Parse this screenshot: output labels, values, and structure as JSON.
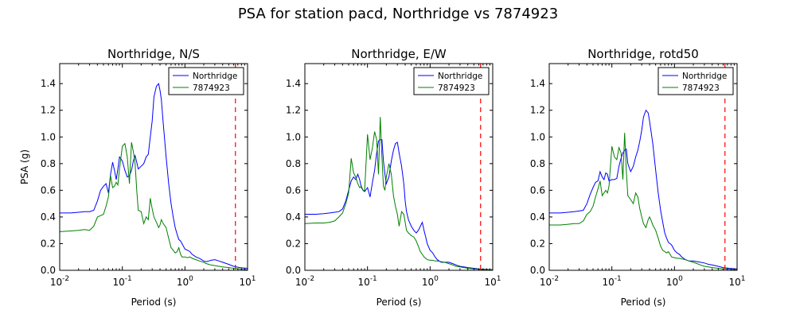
{
  "figure": {
    "title": "PSA for station pacd, Northridge vs 7874923"
  },
  "colors": {
    "northridge": "#0000ff",
    "event": "#008000",
    "cutoff": "#ff0000"
  },
  "chart_data": [
    {
      "type": "line",
      "title": "Northridge, N/S",
      "xlabel": "Period (s)",
      "ylabel": "PSA (g)",
      "xscale": "log",
      "xlim": [
        0.01,
        10
      ],
      "ylim": [
        0,
        1.55
      ],
      "xticks": [
        "10^-2",
        "10^-1",
        "10^0",
        "10^1"
      ],
      "yticks": [
        "0.0",
        "0.2",
        "0.4",
        "0.6",
        "0.8",
        "1.0",
        "1.2",
        "1.4"
      ],
      "legend": "top-right",
      "cutoff_period": 6.4,
      "series": [
        {
          "name": "Northridge",
          "color": "#0000ff",
          "x": [
            0.01,
            0.015,
            0.02,
            0.025,
            0.03,
            0.035,
            0.04,
            0.045,
            0.05,
            0.055,
            0.06,
            0.065,
            0.07,
            0.075,
            0.08,
            0.085,
            0.09,
            0.1,
            0.11,
            0.12,
            0.13,
            0.14,
            0.15,
            0.16,
            0.17,
            0.18,
            0.2,
            0.22,
            0.24,
            0.26,
            0.28,
            0.3,
            0.32,
            0.35,
            0.38,
            0.4,
            0.42,
            0.45,
            0.5,
            0.55,
            0.6,
            0.65,
            0.7,
            0.75,
            0.8,
            0.85,
            0.9,
            1.0,
            1.1,
            1.2,
            1.3,
            1.5,
            1.7,
            2.0,
            2.2,
            2.4,
            2.6,
            3.0,
            3.5,
            4.0,
            5.0,
            6.0,
            7.5,
            10
          ],
          "y": [
            0.43,
            0.43,
            0.435,
            0.44,
            0.44,
            0.45,
            0.52,
            0.6,
            0.63,
            0.65,
            0.58,
            0.72,
            0.81,
            0.75,
            0.68,
            0.76,
            0.85,
            0.82,
            0.75,
            0.7,
            0.71,
            0.75,
            0.82,
            0.86,
            0.81,
            0.76,
            0.78,
            0.8,
            0.85,
            0.87,
            1.0,
            1.12,
            1.3,
            1.38,
            1.4,
            1.35,
            1.28,
            1.1,
            0.85,
            0.65,
            0.5,
            0.4,
            0.32,
            0.27,
            0.23,
            0.22,
            0.2,
            0.16,
            0.15,
            0.14,
            0.12,
            0.1,
            0.09,
            0.07,
            0.065,
            0.07,
            0.075,
            0.08,
            0.07,
            0.06,
            0.045,
            0.03,
            0.02,
            0.015
          ]
        },
        {
          "name": "7874923",
          "color": "#008000",
          "x": [
            0.01,
            0.015,
            0.02,
            0.025,
            0.03,
            0.035,
            0.04,
            0.045,
            0.05,
            0.055,
            0.06,
            0.065,
            0.07,
            0.075,
            0.08,
            0.085,
            0.09,
            0.1,
            0.11,
            0.12,
            0.13,
            0.14,
            0.15,
            0.16,
            0.17,
            0.18,
            0.2,
            0.22,
            0.24,
            0.26,
            0.28,
            0.3,
            0.32,
            0.35,
            0.38,
            0.4,
            0.42,
            0.45,
            0.5,
            0.55,
            0.6,
            0.65,
            0.7,
            0.75,
            0.8,
            0.85,
            0.9,
            1.0,
            1.1,
            1.2,
            1.3,
            1.5,
            1.7,
            2.0,
            2.2,
            2.4,
            2.6,
            3.0,
            3.5,
            4.0,
            5.0,
            6.0,
            7.5,
            10
          ],
          "y": [
            0.29,
            0.295,
            0.3,
            0.305,
            0.3,
            0.33,
            0.4,
            0.41,
            0.42,
            0.48,
            0.55,
            0.71,
            0.62,
            0.63,
            0.66,
            0.64,
            0.76,
            0.93,
            0.95,
            0.85,
            0.65,
            0.96,
            0.89,
            0.8,
            0.6,
            0.45,
            0.44,
            0.35,
            0.4,
            0.38,
            0.54,
            0.46,
            0.4,
            0.36,
            0.32,
            0.34,
            0.38,
            0.35,
            0.32,
            0.24,
            0.17,
            0.15,
            0.13,
            0.14,
            0.17,
            0.12,
            0.1,
            0.1,
            0.095,
            0.1,
            0.09,
            0.08,
            0.07,
            0.06,
            0.05,
            0.045,
            0.04,
            0.035,
            0.03,
            0.025,
            0.02,
            0.015,
            0.01,
            0.005
          ]
        }
      ]
    },
    {
      "type": "line",
      "title": "Northridge, E/W",
      "xlabel": "Period (s)",
      "ylabel": "",
      "xscale": "log",
      "xlim": [
        0.01,
        10
      ],
      "ylim": [
        0,
        1.55
      ],
      "xticks": [
        "10^-2",
        "10^-1",
        "10^0",
        "10^1"
      ],
      "yticks": [
        "0.0",
        "0.2",
        "0.4",
        "0.6",
        "0.8",
        "1.0",
        "1.2",
        "1.4"
      ],
      "legend": "top-right",
      "cutoff_period": 6.4,
      "series": [
        {
          "name": "Northridge",
          "color": "#0000ff",
          "x": [
            0.01,
            0.015,
            0.02,
            0.025,
            0.03,
            0.035,
            0.04,
            0.045,
            0.05,
            0.055,
            0.06,
            0.065,
            0.07,
            0.075,
            0.08,
            0.085,
            0.09,
            0.1,
            0.11,
            0.12,
            0.13,
            0.14,
            0.15,
            0.16,
            0.17,
            0.18,
            0.19,
            0.2,
            0.22,
            0.24,
            0.26,
            0.28,
            0.3,
            0.32,
            0.35,
            0.38,
            0.4,
            0.42,
            0.45,
            0.5,
            0.55,
            0.6,
            0.65,
            0.7,
            0.75,
            0.8,
            0.85,
            0.9,
            1.0,
            1.1,
            1.2,
            1.3,
            1.5,
            1.7,
            2.0,
            2.3,
            2.6,
            3.0,
            3.5,
            4.0,
            5.0,
            6.0,
            7.5,
            10
          ],
          "y": [
            0.42,
            0.42,
            0.425,
            0.43,
            0.435,
            0.44,
            0.46,
            0.52,
            0.6,
            0.67,
            0.7,
            0.68,
            0.72,
            0.68,
            0.62,
            0.6,
            0.59,
            0.62,
            0.55,
            0.66,
            0.75,
            0.88,
            0.97,
            0.98,
            0.98,
            0.82,
            0.72,
            0.65,
            0.7,
            0.82,
            0.9,
            0.95,
            0.96,
            0.88,
            0.78,
            0.65,
            0.52,
            0.44,
            0.38,
            0.33,
            0.3,
            0.28,
            0.3,
            0.33,
            0.36,
            0.3,
            0.25,
            0.2,
            0.15,
            0.13,
            0.1,
            0.08,
            0.06,
            0.06,
            0.06,
            0.05,
            0.04,
            0.03,
            0.025,
            0.02,
            0.015,
            0.01,
            0.008,
            0.005
          ]
        },
        {
          "name": "7874923",
          "color": "#008000",
          "x": [
            0.01,
            0.015,
            0.02,
            0.025,
            0.03,
            0.035,
            0.04,
            0.045,
            0.05,
            0.055,
            0.06,
            0.065,
            0.07,
            0.075,
            0.08,
            0.085,
            0.09,
            0.1,
            0.11,
            0.12,
            0.13,
            0.14,
            0.15,
            0.16,
            0.17,
            0.18,
            0.19,
            0.2,
            0.22,
            0.24,
            0.26,
            0.28,
            0.3,
            0.32,
            0.35,
            0.38,
            0.4,
            0.42,
            0.45,
            0.5,
            0.55,
            0.6,
            0.65,
            0.7,
            0.75,
            0.8,
            0.85,
            0.9,
            1.0,
            1.1,
            1.2,
            1.3,
            1.5,
            1.7,
            2.0,
            2.3,
            2.6,
            3.0,
            3.5,
            4.0,
            5.0,
            6.0,
            7.5,
            10
          ],
          "y": [
            0.35,
            0.355,
            0.355,
            0.36,
            0.37,
            0.4,
            0.43,
            0.5,
            0.58,
            0.84,
            0.73,
            0.7,
            0.65,
            0.62,
            0.63,
            0.6,
            0.6,
            1.02,
            0.83,
            0.92,
            1.04,
            0.98,
            0.72,
            1.15,
            0.85,
            0.63,
            0.6,
            0.7,
            0.8,
            0.72,
            0.56,
            0.48,
            0.42,
            0.33,
            0.44,
            0.42,
            0.36,
            0.3,
            0.28,
            0.26,
            0.25,
            0.22,
            0.18,
            0.14,
            0.12,
            0.1,
            0.09,
            0.08,
            0.075,
            0.075,
            0.07,
            0.07,
            0.065,
            0.06,
            0.05,
            0.04,
            0.03,
            0.025,
            0.02,
            0.015,
            0.01,
            0.008,
            0.005,
            0.003
          ]
        }
      ]
    },
    {
      "type": "line",
      "title": "Northridge, rotd50",
      "xlabel": "Period (s)",
      "ylabel": "",
      "xscale": "log",
      "xlim": [
        0.01,
        10
      ],
      "ylim": [
        0,
        1.55
      ],
      "xticks": [
        "10^-2",
        "10^-1",
        "10^0",
        "10^1"
      ],
      "yticks": [
        "0.0",
        "0.2",
        "0.4",
        "0.6",
        "0.8",
        "1.0",
        "1.2",
        "1.4"
      ],
      "legend": "top-right",
      "cutoff_period": 6.4,
      "series": [
        {
          "name": "Northridge",
          "color": "#0000ff",
          "x": [
            0.01,
            0.015,
            0.02,
            0.025,
            0.03,
            0.035,
            0.04,
            0.045,
            0.05,
            0.055,
            0.06,
            0.065,
            0.07,
            0.075,
            0.08,
            0.085,
            0.09,
            0.1,
            0.11,
            0.12,
            0.13,
            0.14,
            0.15,
            0.16,
            0.17,
            0.18,
            0.2,
            0.22,
            0.24,
            0.26,
            0.28,
            0.3,
            0.32,
            0.35,
            0.38,
            0.4,
            0.42,
            0.45,
            0.5,
            0.55,
            0.6,
            0.65,
            0.7,
            0.75,
            0.8,
            0.85,
            0.9,
            1.0,
            1.1,
            1.2,
            1.3,
            1.5,
            1.7,
            2.0,
            2.3,
            2.6,
            3.0,
            3.5,
            4.0,
            5.0,
            6.0,
            7.5,
            10
          ],
          "y": [
            0.43,
            0.43,
            0.435,
            0.44,
            0.445,
            0.45,
            0.5,
            0.57,
            0.62,
            0.66,
            0.67,
            0.74,
            0.7,
            0.68,
            0.73,
            0.72,
            0.67,
            0.68,
            0.68,
            0.69,
            0.78,
            0.84,
            0.88,
            0.9,
            0.91,
            0.8,
            0.74,
            0.78,
            0.85,
            0.9,
            0.97,
            1.05,
            1.15,
            1.2,
            1.18,
            1.12,
            1.05,
            0.95,
            0.75,
            0.58,
            0.45,
            0.36,
            0.28,
            0.24,
            0.21,
            0.2,
            0.19,
            0.15,
            0.13,
            0.12,
            0.1,
            0.08,
            0.07,
            0.07,
            0.065,
            0.06,
            0.055,
            0.045,
            0.04,
            0.03,
            0.02,
            0.015,
            0.01
          ]
        },
        {
          "name": "7874923",
          "color": "#008000",
          "x": [
            0.01,
            0.015,
            0.02,
            0.025,
            0.03,
            0.035,
            0.04,
            0.045,
            0.05,
            0.055,
            0.06,
            0.065,
            0.07,
            0.075,
            0.08,
            0.085,
            0.09,
            0.1,
            0.11,
            0.12,
            0.13,
            0.14,
            0.15,
            0.16,
            0.17,
            0.18,
            0.2,
            0.22,
            0.24,
            0.26,
            0.28,
            0.3,
            0.32,
            0.35,
            0.38,
            0.4,
            0.42,
            0.45,
            0.5,
            0.55,
            0.6,
            0.65,
            0.7,
            0.75,
            0.8,
            0.85,
            0.9,
            1.0,
            1.1,
            1.2,
            1.3,
            1.5,
            1.7,
            2.0,
            2.3,
            2.6,
            3.0,
            3.5,
            4.0,
            5.0,
            6.0,
            7.5,
            10
          ],
          "y": [
            0.34,
            0.34,
            0.345,
            0.35,
            0.35,
            0.37,
            0.42,
            0.44,
            0.48,
            0.55,
            0.61,
            0.67,
            0.56,
            0.58,
            0.6,
            0.58,
            0.63,
            0.93,
            0.85,
            0.83,
            0.92,
            0.88,
            0.68,
            1.03,
            0.75,
            0.56,
            0.53,
            0.5,
            0.58,
            0.55,
            0.46,
            0.4,
            0.35,
            0.32,
            0.38,
            0.4,
            0.38,
            0.34,
            0.3,
            0.24,
            0.18,
            0.15,
            0.14,
            0.13,
            0.14,
            0.12,
            0.1,
            0.095,
            0.09,
            0.09,
            0.085,
            0.08,
            0.07,
            0.06,
            0.05,
            0.04,
            0.03,
            0.025,
            0.02,
            0.015,
            0.01,
            0.008,
            0.005
          ]
        }
      ]
    }
  ]
}
